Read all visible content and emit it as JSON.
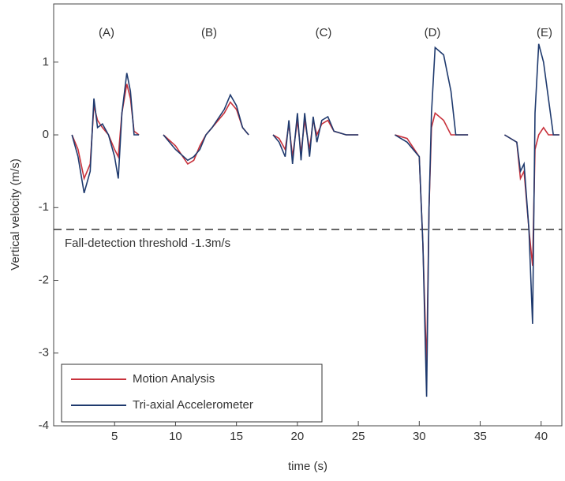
{
  "chart_data": {
    "type": "line",
    "ylabel": "Vertical velocity (m/s)",
    "xlabel": "time (s)",
    "annotations": [
      "(A)",
      "(B)",
      "(C)",
      "(D)",
      "(E)"
    ],
    "threshold": -1.3,
    "threshold_label": "Fall-detection threshold -1.3m/s",
    "xlim": [
      0,
      41.7
    ],
    "xticks": [
      5,
      10,
      15,
      20,
      25,
      30,
      35,
      40
    ],
    "ylim": [
      -4,
      1.8
    ],
    "yticks": [
      -4,
      -3,
      -2,
      -1,
      0,
      1
    ],
    "legend": "lower left",
    "x": [
      1.5,
      2,
      2.5,
      3,
      3.3,
      3.6,
      4,
      4.5,
      5,
      5.3,
      5.6,
      6,
      6.3,
      6.6,
      7,
      8,
      9,
      10,
      11,
      11.5,
      12,
      12.5,
      13,
      14,
      14.5,
      15,
      15.5,
      16,
      17,
      18,
      18.5,
      19,
      19.3,
      19.6,
      20,
      20.3,
      20.6,
      21,
      21.3,
      21.6,
      22,
      22.5,
      23,
      24,
      25,
      26,
      28,
      29,
      30,
      30.3,
      30.6,
      30.8,
      31,
      31.3,
      32,
      32.6,
      33,
      34,
      35,
      37,
      38,
      38.3,
      38.6,
      39,
      39.3,
      39.5,
      39.8,
      40.2,
      40.6,
      41,
      41.5
    ],
    "series": [
      {
        "name": "Motion Analysis",
        "color": "#c8323c",
        "values": [
          0,
          -0.2,
          -0.6,
          -0.4,
          0.4,
          0.2,
          0.1,
          0,
          -0.2,
          -0.3,
          0.3,
          0.7,
          0.5,
          0.05,
          0,
          null,
          0,
          -0.15,
          -0.4,
          -0.35,
          -0.15,
          0,
          0.1,
          0.3,
          0.45,
          0.35,
          0.1,
          0,
          null,
          0,
          -0.05,
          -0.2,
          0.15,
          -0.3,
          0.2,
          -0.25,
          0.2,
          -0.2,
          0.2,
          0,
          0.15,
          0.2,
          0.05,
          0,
          0,
          null,
          0,
          -0.05,
          -0.3,
          -1.5,
          -3.2,
          -1,
          0.1,
          0.3,
          0.2,
          0,
          0,
          0,
          null,
          0,
          -0.1,
          -0.6,
          -0.5,
          -1.3,
          -1.8,
          -0.2,
          0,
          0.1,
          0,
          0,
          0
        ]
      },
      {
        "name": "Tri-axial Accelerometer",
        "color": "#1f3a6e",
        "values": [
          0,
          -0.3,
          -0.8,
          -0.5,
          0.5,
          0.1,
          0.15,
          0,
          -0.3,
          -0.6,
          0.3,
          0.85,
          0.6,
          0,
          0,
          null,
          0,
          -0.2,
          -0.35,
          -0.3,
          -0.2,
          0,
          0.1,
          0.35,
          0.55,
          0.4,
          0.1,
          0,
          null,
          0,
          -0.1,
          -0.3,
          0.2,
          -0.4,
          0.3,
          -0.35,
          0.3,
          -0.3,
          0.25,
          -0.1,
          0.2,
          0.25,
          0.05,
          0,
          0,
          null,
          0,
          -0.1,
          -0.3,
          -1.5,
          -3.6,
          -1,
          0.3,
          1.2,
          1.1,
          0.6,
          0,
          0,
          null,
          0,
          -0.1,
          -0.5,
          -0.4,
          -1.3,
          -2.6,
          0.3,
          1.25,
          1,
          0.5,
          0,
          0
        ]
      }
    ]
  }
}
